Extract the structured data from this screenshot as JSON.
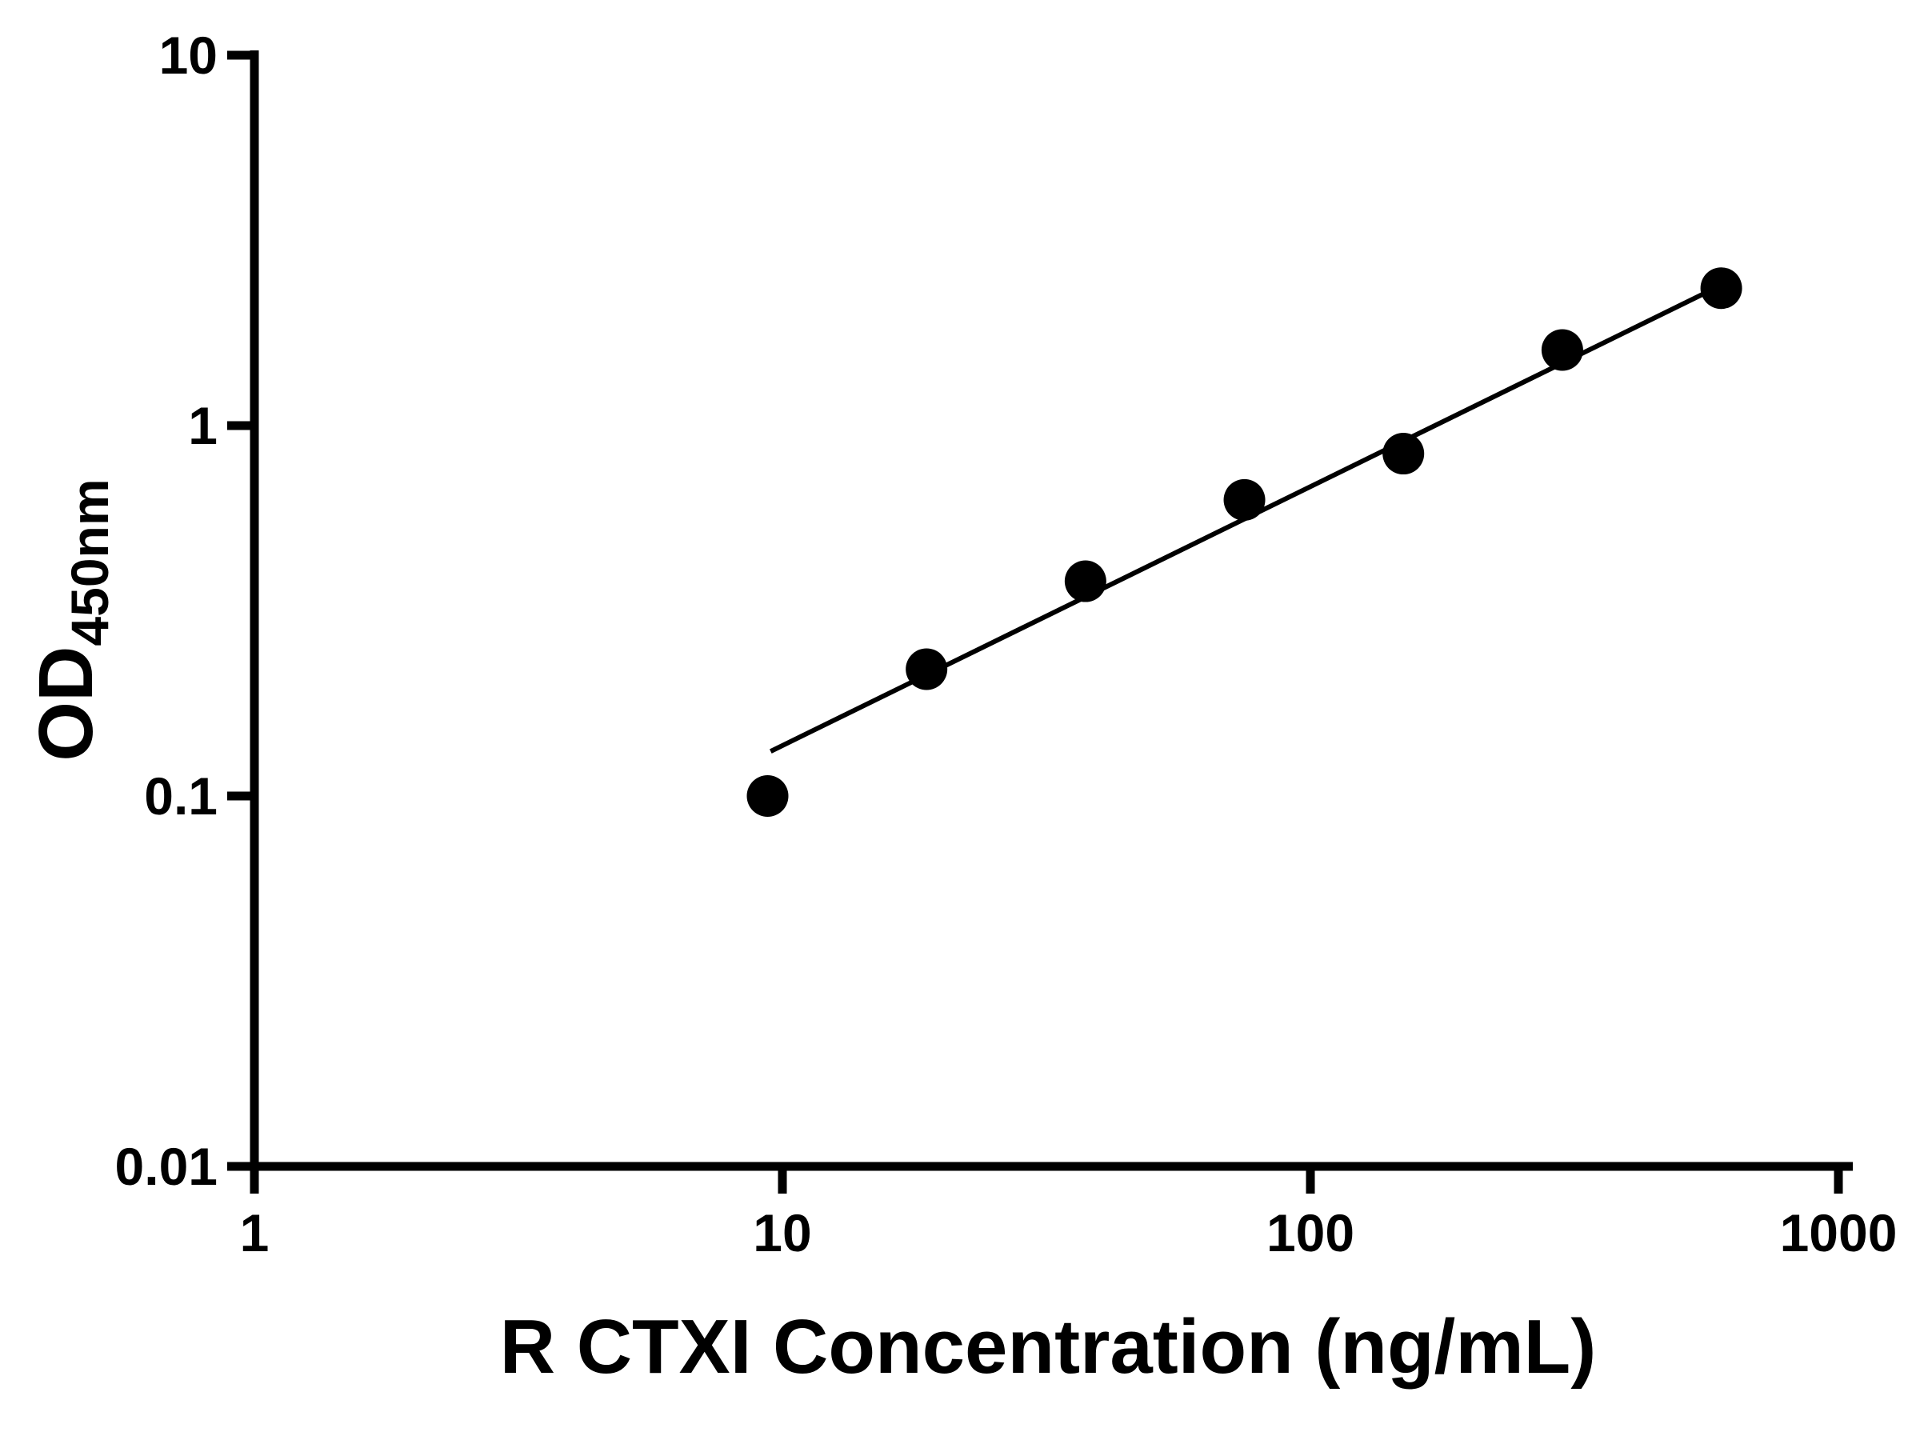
{
  "chart_data": {
    "type": "scatter",
    "title": "",
    "xlabel": "R CTXI Concentration (ng/mL)",
    "ylabel_main": "OD",
    "ylabel_sub": "450nm",
    "x_scale": "log",
    "y_scale": "log",
    "xlim": [
      1,
      1000
    ],
    "ylim": [
      0.01,
      10
    ],
    "grid": false,
    "legend": "none",
    "axis_color": "#000000",
    "marker_color": "#000000",
    "line_color": "#000000",
    "x_ticks": [
      {
        "value": 1,
        "label": "1"
      },
      {
        "value": 10,
        "label": "10"
      },
      {
        "value": 100,
        "label": "100"
      },
      {
        "value": 1000,
        "label": "1000"
      }
    ],
    "y_ticks": [
      {
        "value": 0.01,
        "label": "0.01"
      },
      {
        "value": 0.1,
        "label": "0.1"
      },
      {
        "value": 1,
        "label": "1"
      },
      {
        "value": 10,
        "label": "10"
      }
    ],
    "points": [
      {
        "x": 9.375,
        "y": 0.1
      },
      {
        "x": 18.75,
        "y": 0.22
      },
      {
        "x": 37.5,
        "y": 0.38
      },
      {
        "x": 75,
        "y": 0.63
      },
      {
        "x": 150,
        "y": 0.84
      },
      {
        "x": 300,
        "y": 1.6
      },
      {
        "x": 600,
        "y": 2.35
      }
    ],
    "trendline": {
      "x1": 9.5,
      "y1": 0.132,
      "x2": 620,
      "y2": 2.45
    }
  }
}
